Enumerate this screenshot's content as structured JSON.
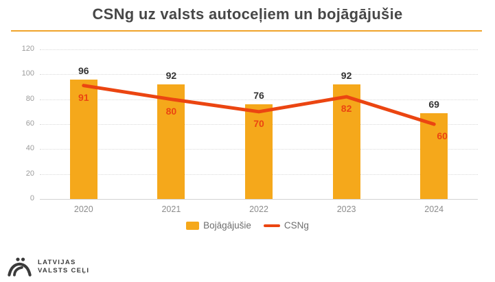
{
  "title": "CSNg uz valsts autoceļiem un bojāgājušie",
  "colors": {
    "bar": "#F5A81B",
    "line": "#EB4511",
    "title_text": "#474747",
    "underline": "#F0A32A",
    "axis_text": "#9b9b9b",
    "xaxis_text": "#8c8c8c",
    "bar_label": "#333333",
    "legend_text": "#6e6e6e",
    "logo_text": "#3b3b3b"
  },
  "chart_data": {
    "type": "bar",
    "title": "CSNg uz valsts autoceļiem un bojāgājušie",
    "categories": [
      "2020",
      "2021",
      "2022",
      "2023",
      "2024"
    ],
    "series": [
      {
        "name": "Bojāgājušie",
        "type": "bar",
        "values": [
          96,
          92,
          76,
          92,
          69
        ]
      },
      {
        "name": "CSNg",
        "type": "line",
        "values": [
          91,
          80,
          70,
          82,
          60
        ]
      }
    ],
    "xlabel": "",
    "ylabel": "",
    "ylim": [
      0,
      120
    ],
    "yticks": [
      0,
      20,
      40,
      60,
      80,
      100,
      120
    ],
    "grid": true,
    "legend_position": "bottom"
  },
  "legend": {
    "items": [
      {
        "label": "Bojāgājušie",
        "swatch": "bar"
      },
      {
        "label": "CSNg",
        "swatch": "line"
      }
    ]
  },
  "logo": {
    "line1": "LATVIJAS",
    "line2": "VALSTS CEĻI"
  }
}
